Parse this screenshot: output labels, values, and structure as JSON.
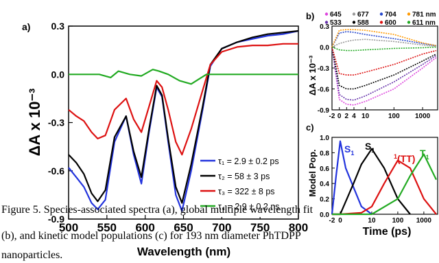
{
  "chart_data": [
    {
      "id": "a",
      "type": "line",
      "panel_label": "a)",
      "xlabel": "Wavelength (nm)",
      "ylabel": "ΔA x 10⁻³",
      "xlim": [
        500,
        800
      ],
      "ylim": [
        -0.9,
        0.3
      ],
      "xticks": [
        "500",
        "550",
        "600",
        "650",
        "700",
        "750",
        "800"
      ],
      "yticks": [
        "0.3",
        "0.0",
        "-0.3",
        "-0.6",
        "-0.9"
      ],
      "series": [
        {
          "name": "τ₁ = 2.9 ± 0.2 ps",
          "color": "#2233dd",
          "x": [
            500,
            510,
            520,
            530,
            538,
            548,
            560,
            575,
            585,
            595,
            605,
            615,
            622,
            630,
            640,
            648,
            660,
            675,
            685,
            700,
            720,
            740,
            760,
            780,
            800
          ],
          "y": [
            -0.58,
            -0.64,
            -0.7,
            -0.8,
            -0.84,
            -0.78,
            -0.42,
            -0.26,
            -0.5,
            -0.68,
            -0.36,
            -0.08,
            -0.14,
            -0.42,
            -0.75,
            -0.85,
            -0.6,
            -0.22,
            0.05,
            0.16,
            0.2,
            0.22,
            0.24,
            0.25,
            0.27
          ]
        },
        {
          "name": "τ₂ = 58 ± 3 ps",
          "color": "#000000",
          "x": [
            500,
            510,
            520,
            530,
            538,
            548,
            560,
            575,
            585,
            595,
            605,
            615,
            622,
            630,
            640,
            648,
            660,
            675,
            685,
            700,
            720,
            740,
            760,
            780,
            800
          ],
          "y": [
            -0.5,
            -0.55,
            -0.62,
            -0.74,
            -0.79,
            -0.72,
            -0.39,
            -0.26,
            -0.48,
            -0.64,
            -0.34,
            -0.07,
            -0.13,
            -0.4,
            -0.7,
            -0.8,
            -0.56,
            -0.2,
            0.06,
            0.16,
            0.2,
            0.23,
            0.25,
            0.26,
            0.27
          ]
        },
        {
          "name": "τ₃ = 322 ± 8 ps",
          "color": "#dd1111",
          "x": [
            500,
            510,
            520,
            530,
            538,
            548,
            560,
            575,
            585,
            595,
            605,
            615,
            622,
            630,
            640,
            648,
            660,
            675,
            685,
            700,
            720,
            740,
            760,
            780,
            800
          ],
          "y": [
            -0.22,
            -0.26,
            -0.29,
            -0.36,
            -0.4,
            -0.38,
            -0.22,
            -0.15,
            -0.28,
            -0.36,
            -0.2,
            -0.04,
            -0.08,
            -0.22,
            -0.42,
            -0.5,
            -0.34,
            -0.1,
            0.06,
            0.14,
            0.17,
            0.18,
            0.18,
            0.19,
            0.19
          ]
        },
        {
          "name": "τ₄ = 2.9 ± 0.2 ns",
          "color": "#22aa22",
          "x": [
            500,
            520,
            540,
            555,
            565,
            580,
            595,
            610,
            618,
            630,
            645,
            660,
            670,
            680,
            700,
            740,
            800
          ],
          "y": [
            0.0,
            0.0,
            0.0,
            -0.02,
            0.02,
            0.0,
            -0.01,
            0.03,
            0.02,
            0.0,
            -0.04,
            -0.06,
            -0.03,
            0.0,
            0.0,
            0.0,
            0.0
          ]
        }
      ]
    },
    {
      "id": "b",
      "type": "line",
      "panel_label": "b)",
      "xlabel": "",
      "ylabel": "ΔA x 10⁻³",
      "ylim": [
        -0.9,
        0.3
      ],
      "xticks": [
        "-2",
        "0",
        "2",
        "4",
        "10",
        "100",
        "1000"
      ],
      "yticks": [
        "0.3",
        "0.0",
        "-0.3",
        "-0.6",
        "-0.9"
      ],
      "series": [
        {
          "name": "645",
          "color": "#dd44dd",
          "x": [
            -2,
            0,
            2,
            4,
            10,
            100,
            1000,
            3000
          ],
          "y": [
            0.0,
            -0.75,
            -0.82,
            -0.83,
            -0.78,
            -0.6,
            -0.3,
            -0.15
          ]
        },
        {
          "name": "677",
          "color": "#999999",
          "x": [
            -2,
            0,
            2,
            4,
            10,
            100,
            1000,
            3000
          ],
          "y": [
            0.0,
            0.05,
            0.08,
            0.1,
            0.11,
            0.08,
            0.03,
            0.01
          ]
        },
        {
          "name": "704",
          "color": "#2244cc",
          "x": [
            -2,
            0,
            2,
            4,
            10,
            100,
            1000,
            3000
          ],
          "y": [
            0.0,
            0.2,
            0.22,
            0.21,
            0.18,
            0.12,
            0.05,
            0.02
          ]
        },
        {
          "name": "781 nm",
          "color": "#ff9900",
          "x": [
            -2,
            0,
            2,
            4,
            10,
            100,
            1000,
            3000
          ],
          "y": [
            0.0,
            0.24,
            0.25,
            0.25,
            0.24,
            0.18,
            0.06,
            0.02
          ]
        },
        {
          "name": "533",
          "color": "#6633aa",
          "x": [
            -2,
            0,
            2,
            4,
            10,
            100,
            1000,
            3000
          ],
          "y": [
            0.0,
            -0.68,
            -0.75,
            -0.76,
            -0.7,
            -0.5,
            -0.25,
            -0.12
          ]
        },
        {
          "name": "588",
          "color": "#000000",
          "x": [
            -2,
            0,
            2,
            4,
            10,
            100,
            1000,
            3000
          ],
          "y": [
            0.0,
            -0.55,
            -0.6,
            -0.6,
            -0.55,
            -0.4,
            -0.2,
            -0.1
          ]
        },
        {
          "name": "600",
          "color": "#dd1111",
          "x": [
            -2,
            0,
            2,
            4,
            10,
            100,
            1000,
            3000
          ],
          "y": [
            0.0,
            -0.38,
            -0.4,
            -0.4,
            -0.36,
            -0.25,
            -0.1,
            -0.05
          ]
        },
        {
          "name": "611 nm",
          "color": "#22aa22",
          "x": [
            -2,
            0,
            2,
            4,
            10,
            100,
            1000,
            3000
          ],
          "y": [
            0.0,
            -0.04,
            -0.05,
            -0.05,
            -0.04,
            -0.02,
            -0.01,
            0.0
          ]
        }
      ]
    },
    {
      "id": "c",
      "type": "line",
      "panel_label": "c)",
      "xlabel": "Time (ps)",
      "ylabel": "Model Pop.",
      "ylim": [
        0.0,
        1.0
      ],
      "xticks": [
        "-2",
        "0",
        "10",
        "100",
        "1000"
      ],
      "yticks": [
        "1.0",
        "0.8",
        "0.6",
        "0.4",
        "0.2",
        "0.0"
      ],
      "annotations": [
        {
          "text": "S",
          "sub": "1",
          "color": "#2233dd"
        },
        {
          "text": "S",
          "sub": "1",
          "color": "#000000"
        },
        {
          "text": "(TT)",
          "sup": "1",
          "color": "#dd1111"
        },
        {
          "text": "T",
          "sub": "1",
          "color": "#22aa22"
        }
      ],
      "series": [
        {
          "name": "S1 (τ1)",
          "color": "#2233dd",
          "x": [
            -2,
            -1,
            0,
            1,
            2,
            4,
            10
          ],
          "y": [
            0.0,
            0.5,
            0.95,
            0.6,
            0.35,
            0.1,
            0.0
          ]
        },
        {
          "name": "S1 (τ2)",
          "color": "#000000",
          "x": [
            -2,
            0,
            2,
            4,
            10,
            30,
            100,
            300
          ],
          "y": [
            0.0,
            0.0,
            0.4,
            0.65,
            0.85,
            0.6,
            0.2,
            0.0
          ]
        },
        {
          "name": "1(TT)",
          "color": "#dd1111",
          "x": [
            -2,
            0,
            4,
            10,
            30,
            100,
            300,
            1000,
            3000
          ],
          "y": [
            0.0,
            0.0,
            0.02,
            0.1,
            0.4,
            0.7,
            0.6,
            0.2,
            0.0
          ]
        },
        {
          "name": "T1",
          "color": "#22aa22",
          "x": [
            -2,
            0,
            10,
            100,
            300,
            1000,
            3000
          ],
          "y": [
            0.0,
            0.0,
            0.0,
            0.2,
            0.5,
            0.78,
            0.45
          ]
        }
      ]
    }
  ],
  "caption": {
    "line1": "Figure 5. Species-associated spectra (a), global multiple wavelength fit",
    "line2": "(b), and kinetic model populations (c) for 193 nm diameter PhTDPP",
    "line3": "nanoparticles."
  }
}
